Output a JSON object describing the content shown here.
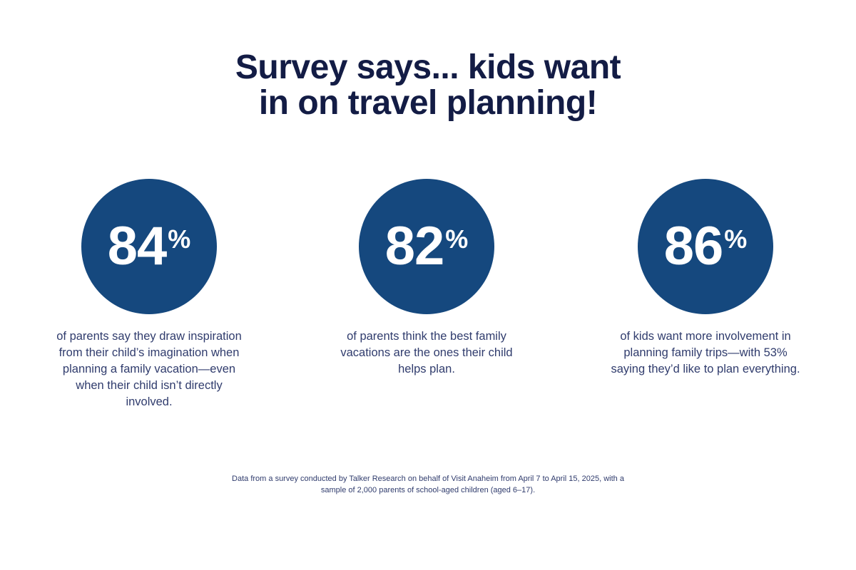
{
  "page": {
    "title": "Survey says... kids want\nin on travel planning!",
    "footnote": "Data from a survey conducted by Talker Research on behalf of Visit Anaheim from April 7 to April 15, 2025, with a sample of 2,000 parents of school-aged children (aged 6–17)."
  },
  "stats": [
    {
      "value": "84",
      "unit": "%",
      "description": "of parents say they draw inspiration from their child’s imagination when planning a family vacation—even when their child isn’t directly involved."
    },
    {
      "value": "82",
      "unit": "%",
      "description": "of parents think the best family vacations are the ones their child helps plan."
    },
    {
      "value": "86",
      "unit": "%",
      "description": "of kids want more involvement in planning family trips—with 53% saying they’d like to plan everything."
    }
  ],
  "chart_data": {
    "type": "pie",
    "title": "Survey says... kids want in on travel planning!",
    "series": [
      {
        "name": "parents drawing inspiration from child's imagination",
        "value": 84,
        "unit": "%"
      },
      {
        "name": "parents who think best vacations are child-planned",
        "value": 82,
        "unit": "%"
      },
      {
        "name": "kids wanting more involvement in planning",
        "value": 86,
        "unit": "%"
      },
      {
        "name": "kids who would like to plan everything",
        "value": 53,
        "unit": "%"
      }
    ],
    "annotations": [
      "Data from a survey conducted by Talker Research on behalf of Visit Anaheim from April 7 to April 15, 2025, with a sample of 2,000 parents of school-aged children (aged 6–17)."
    ],
    "legend_position": "none",
    "grid": false
  },
  "colors": {
    "circle_blue": "#15487e",
    "title_navy": "#131c45",
    "body_navy": "#303c6d",
    "stat_text": "#ffffff",
    "background": "#ffffff"
  }
}
